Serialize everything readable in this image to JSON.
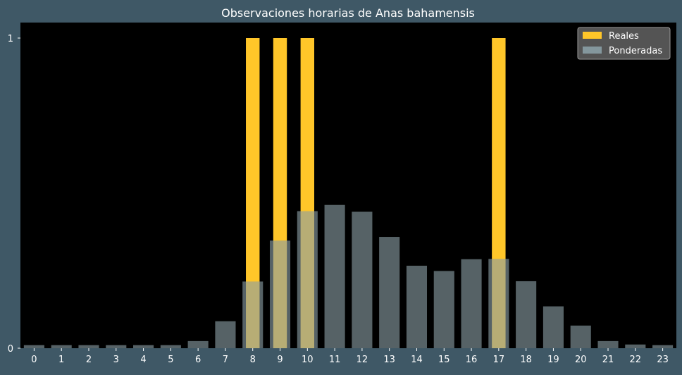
{
  "chart_data": {
    "type": "bar",
    "title": "Observaciones horarias de Anas bahamensis",
    "xlabel": "",
    "ylabel": "",
    "categories": [
      "0",
      "1",
      "2",
      "3",
      "4",
      "5",
      "6",
      "7",
      "8",
      "9",
      "10",
      "11",
      "12",
      "13",
      "14",
      "15",
      "16",
      "17",
      "18",
      "19",
      "20",
      "21",
      "22",
      "23"
    ],
    "series": [
      {
        "name": "Reales",
        "color": "#ffc629",
        "values": [
          0,
          0,
          0,
          0,
          0,
          0,
          0,
          0,
          1,
          1,
          1,
          0,
          0,
          0,
          0,
          0,
          0,
          1,
          0,
          0,
          0,
          0,
          0,
          0
        ]
      },
      {
        "name": "Ponderadas",
        "color": "#8a9ea5",
        "values": [
          0.01,
          0.01,
          0.01,
          0.01,
          0.01,
          0.01,
          0.023,
          0.087,
          0.215,
          0.347,
          0.442,
          0.462,
          0.44,
          0.359,
          0.266,
          0.249,
          0.287,
          0.288,
          0.216,
          0.135,
          0.073,
          0.023,
          0.012,
          0.01
        ]
      }
    ],
    "ylim": [
      0,
      1.05
    ],
    "yticks": [
      0,
      1
    ],
    "grid": false,
    "legend_position": "top-right",
    "colors": {
      "figure_background": "#3f5866",
      "plot_background": "#000000",
      "text": "#ffffff",
      "legend_background": "#595959",
      "legend_border": "#9a9a9a"
    }
  }
}
